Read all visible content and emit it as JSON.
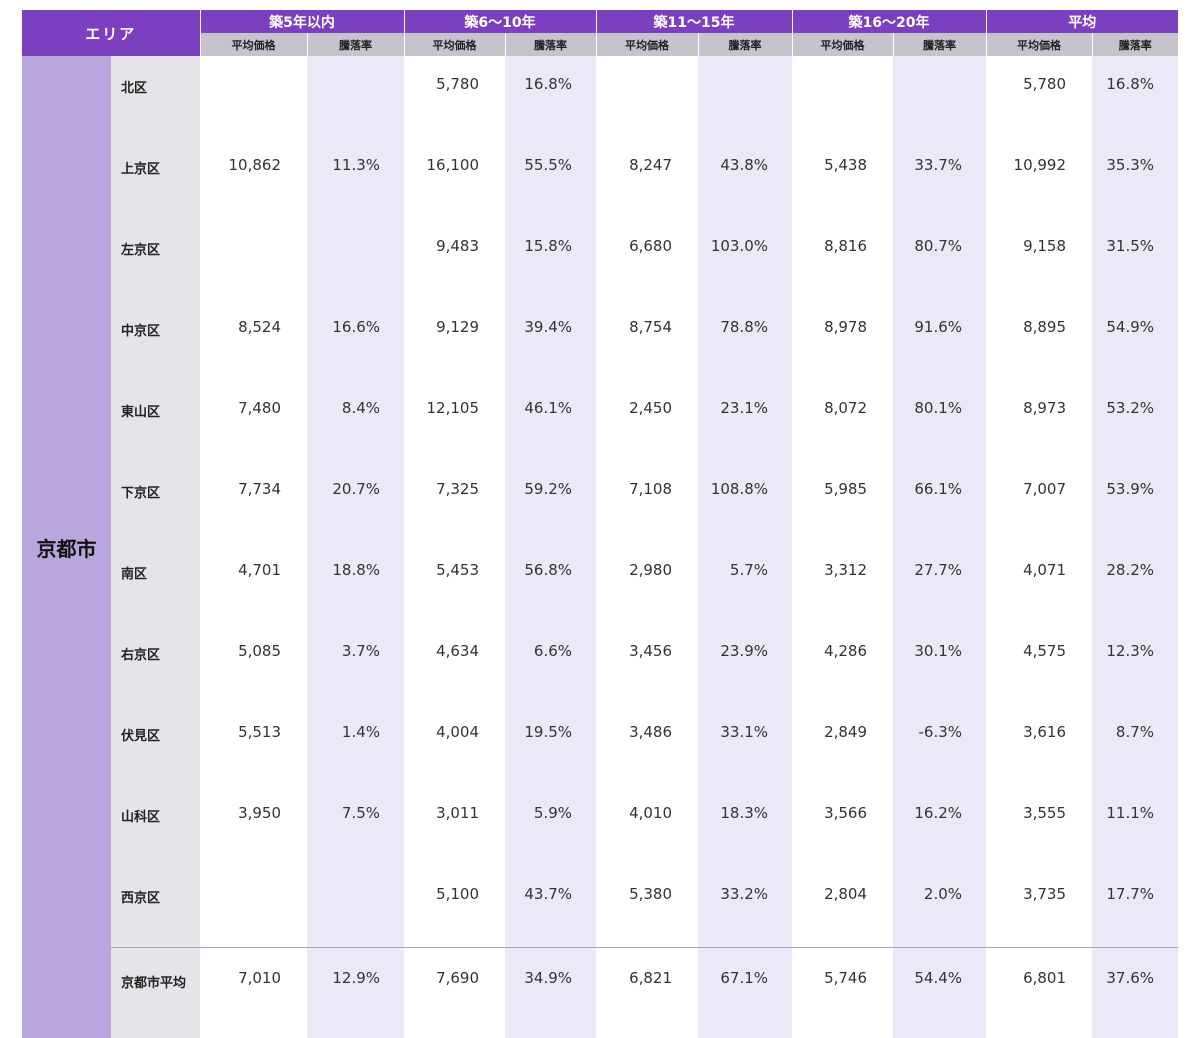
{
  "header": {
    "area_label": "エリア",
    "groups": [
      "築5年以内",
      "築6～10年",
      "築11～15年",
      "築16～20年",
      "平均"
    ],
    "sub_price": "平均価格",
    "sub_rate": "騰落率"
  },
  "city": "京都市",
  "rows": [
    {
      "ward": "北区",
      "v": [
        "",
        "",
        "5,780",
        "16.8%",
        "",
        "",
        "",
        "",
        "5,780",
        "16.8%"
      ]
    },
    {
      "ward": "上京区",
      "v": [
        "10,862",
        "11.3%",
        "16,100",
        "55.5%",
        "8,247",
        "43.8%",
        "5,438",
        "33.7%",
        "10,992",
        "35.3%"
      ]
    },
    {
      "ward": "左京区",
      "v": [
        "",
        "",
        "9,483",
        "15.8%",
        "6,680",
        "103.0%",
        "8,816",
        "80.7%",
        "9,158",
        "31.5%"
      ]
    },
    {
      "ward": "中京区",
      "v": [
        "8,524",
        "16.6%",
        "9,129",
        "39.4%",
        "8,754",
        "78.8%",
        "8,978",
        "91.6%",
        "8,895",
        "54.9%"
      ]
    },
    {
      "ward": "東山区",
      "v": [
        "7,480",
        "8.4%",
        "12,105",
        "46.1%",
        "2,450",
        "23.1%",
        "8,072",
        "80.1%",
        "8,973",
        "53.2%"
      ]
    },
    {
      "ward": "下京区",
      "v": [
        "7,734",
        "20.7%",
        "7,325",
        "59.2%",
        "7,108",
        "108.8%",
        "5,985",
        "66.1%",
        "7,007",
        "53.9%"
      ]
    },
    {
      "ward": "南区",
      "v": [
        "4,701",
        "18.8%",
        "5,453",
        "56.8%",
        "2,980",
        "5.7%",
        "3,312",
        "27.7%",
        "4,071",
        "28.2%"
      ]
    },
    {
      "ward": "右京区",
      "v": [
        "5,085",
        "3.7%",
        "4,634",
        "6.6%",
        "3,456",
        "23.9%",
        "4,286",
        "30.1%",
        "4,575",
        "12.3%"
      ]
    },
    {
      "ward": "伏見区",
      "v": [
        "5,513",
        "1.4%",
        "4,004",
        "19.5%",
        "3,486",
        "33.1%",
        "2,849",
        "-6.3%",
        "3,616",
        "8.7%"
      ]
    },
    {
      "ward": "山科区",
      "v": [
        "3,950",
        "7.5%",
        "3,011",
        "5.9%",
        "4,010",
        "18.3%",
        "3,566",
        "16.2%",
        "3,555",
        "11.1%"
      ]
    },
    {
      "ward": "西京区",
      "v": [
        "",
        "",
        "5,100",
        "43.7%",
        "5,380",
        "33.2%",
        "2,804",
        "2.0%",
        "3,735",
        "17.7%"
      ]
    }
  ],
  "average_row": {
    "ward": "京都市平均",
    "v": [
      "7,010",
      "12.9%",
      "7,690",
      "34.9%",
      "6,821",
      "67.1%",
      "5,746",
      "54.4%",
      "6,801",
      "37.6%"
    ]
  },
  "colors": {
    "header": "#7b3fbf",
    "subheader": "#c7c3cd",
    "city": "#b9a6dc",
    "ward": "#e6e4e9",
    "rate_column": "#ece8f8"
  },
  "chart_data": {
    "type": "table",
    "title": "",
    "row_header": "エリア",
    "city": "京都市",
    "column_groups": [
      "築5年以内",
      "築6～10年",
      "築11～15年",
      "築16～20年",
      "平均"
    ],
    "metrics": [
      "平均価格",
      "騰落率"
    ],
    "rows": [
      "北区",
      "上京区",
      "左京区",
      "中京区",
      "東山区",
      "下京区",
      "南区",
      "右京区",
      "伏見区",
      "山科区",
      "西京区",
      "京都市平均"
    ],
    "price": [
      [
        null,
        5780,
        null,
        null,
        5780
      ],
      [
        10862,
        16100,
        8247,
        5438,
        10992
      ],
      [
        null,
        9483,
        6680,
        8816,
        9158
      ],
      [
        8524,
        9129,
        8754,
        8978,
        8895
      ],
      [
        7480,
        12105,
        2450,
        8072,
        8973
      ],
      [
        7734,
        7325,
        7108,
        5985,
        7007
      ],
      [
        4701,
        5453,
        2980,
        3312,
        4071
      ],
      [
        5085,
        4634,
        3456,
        4286,
        4575
      ],
      [
        5513,
        4004,
        3486,
        2849,
        3616
      ],
      [
        3950,
        3011,
        4010,
        3566,
        3555
      ],
      [
        null,
        5100,
        5380,
        2804,
        3735
      ],
      [
        7010,
        7690,
        6821,
        5746,
        6801
      ]
    ],
    "rate_percent": [
      [
        null,
        16.8,
        null,
        null,
        16.8
      ],
      [
        11.3,
        55.5,
        43.8,
        33.7,
        35.3
      ],
      [
        null,
        15.8,
        103.0,
        80.7,
        31.5
      ],
      [
        16.6,
        39.4,
        78.8,
        91.6,
        54.9
      ],
      [
        8.4,
        46.1,
        23.1,
        80.1,
        53.2
      ],
      [
        20.7,
        59.2,
        108.8,
        66.1,
        53.9
      ],
      [
        18.8,
        56.8,
        5.7,
        27.7,
        28.2
      ],
      [
        3.7,
        6.6,
        23.9,
        30.1,
        12.3
      ],
      [
        1.4,
        19.5,
        33.1,
        -6.3,
        8.7
      ],
      [
        7.5,
        5.9,
        18.3,
        16.2,
        11.1
      ],
      [
        null,
        43.7,
        33.2,
        2.0,
        17.7
      ],
      [
        12.9,
        34.9,
        67.1,
        54.4,
        37.6
      ]
    ]
  }
}
